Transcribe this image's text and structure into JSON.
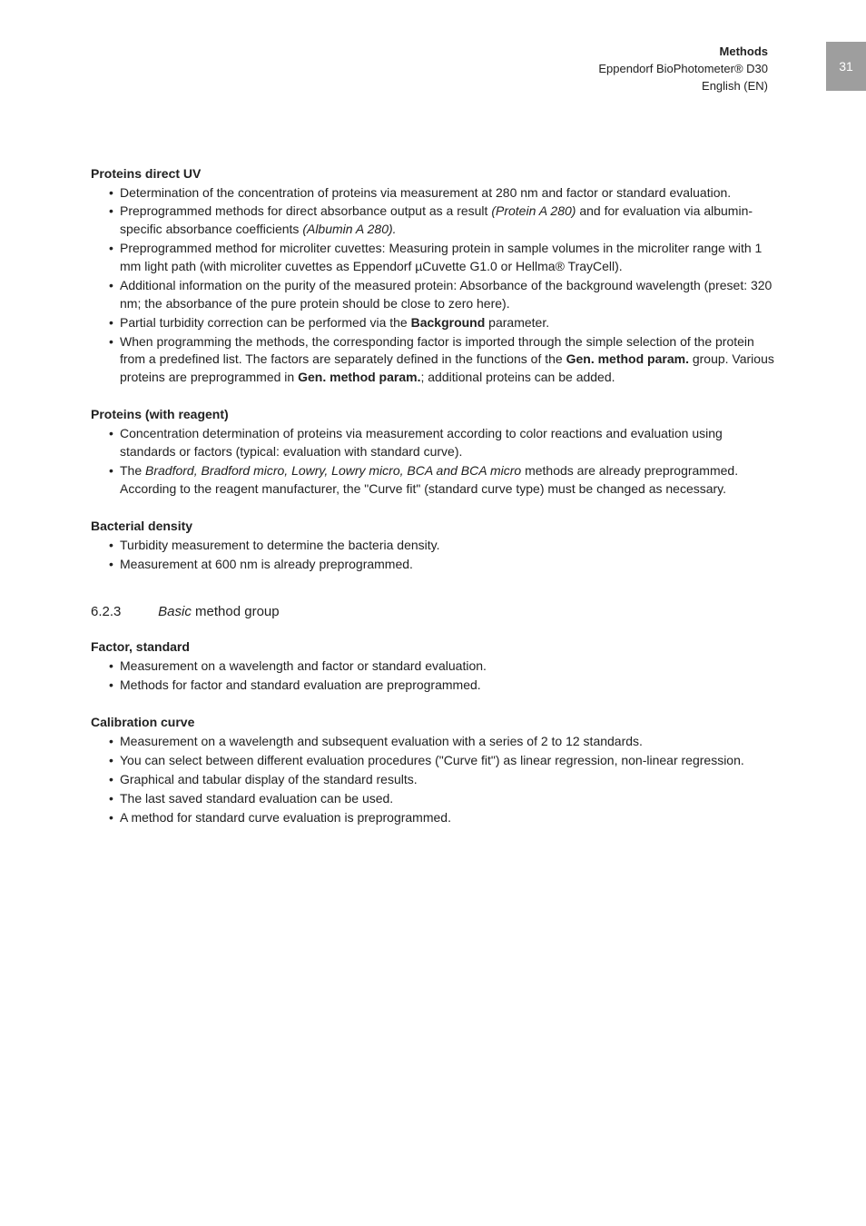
{
  "page_number": "31",
  "header": {
    "title": "Methods",
    "product": "Eppendorf BioPhotometer® D30",
    "language": "English (EN)"
  },
  "sections": [
    {
      "heading": "Proteins direct UV",
      "items": [
        {
          "parts": [
            {
              "t": "Determination of the concentration of proteins via measurement at 280 nm and factor or standard evaluation."
            }
          ]
        },
        {
          "parts": [
            {
              "t": "Preprogrammed methods for direct absorbance output as a result "
            },
            {
              "t": "(Protein A 280)",
              "style": "ital"
            },
            {
              "t": " and for evaluation via albumin-specific absorbance coefficients "
            },
            {
              "t": "(Albumin A 280).",
              "style": "ital"
            }
          ]
        },
        {
          "parts": [
            {
              "t": "Preprogrammed method for microliter cuvettes: Measuring protein in sample volumes in the microliter range with 1 mm light path (with microliter cuvettes as Eppendorf µCuvette G1.0 or Hellma® TrayCell)."
            }
          ]
        },
        {
          "parts": [
            {
              "t": "Additional information on the purity of the measured protein: Absorbance of the background wavelength (preset: 320 nm; the absorbance of the pure protein should be close to zero here)."
            }
          ]
        },
        {
          "parts": [
            {
              "t": "Partial turbidity correction can be performed via the "
            },
            {
              "t": "Background",
              "style": "bold"
            },
            {
              "t": " parameter."
            }
          ]
        },
        {
          "parts": [
            {
              "t": "When programming the methods, the corresponding factor is imported through the simple selection of the protein from a predefined list. The factors are separately defined in the functions of the "
            },
            {
              "t": "Gen. method param.",
              "style": "bold"
            },
            {
              "t": " group. Various proteins are preprogrammed in "
            },
            {
              "t": "Gen. method param.",
              "style": "bold"
            },
            {
              "t": "; additional proteins can be added."
            }
          ]
        }
      ]
    },
    {
      "heading": "Proteins (with reagent)",
      "items": [
        {
          "parts": [
            {
              "t": "Concentration determination of proteins via measurement according to color reactions and evaluation using standards or factors (typical: evaluation with standard curve)."
            }
          ]
        },
        {
          "parts": [
            {
              "t": "The "
            },
            {
              "t": "Bradford, Bradford micro, Lowry, Lowry micro, BCA and BCA micro",
              "style": "ital"
            },
            {
              "t": " methods are already preprogrammed. According to the reagent manufacturer, the \"Curve fit\" (standard curve type) must be changed as necessary."
            }
          ]
        }
      ]
    },
    {
      "heading": "Bacterial density",
      "items": [
        {
          "parts": [
            {
              "t": "Turbidity measurement to determine the bacteria density."
            }
          ]
        },
        {
          "parts": [
            {
              "t": "Measurement at 600 nm is already preprogrammed."
            }
          ]
        }
      ]
    }
  ],
  "subsection": {
    "number": "6.2.3",
    "title_ital": "Basic",
    "title_rest": " method group"
  },
  "sub_sections": [
    {
      "heading": "Factor, standard",
      "items": [
        {
          "parts": [
            {
              "t": "Measurement on a wavelength and factor or standard evaluation."
            }
          ]
        },
        {
          "parts": [
            {
              "t": "Methods for factor and standard evaluation are preprogrammed."
            }
          ]
        }
      ]
    },
    {
      "heading": "Calibration curve",
      "items": [
        {
          "parts": [
            {
              "t": "Measurement on a wavelength and subsequent evaluation with a series of 2 to 12 standards."
            }
          ]
        },
        {
          "parts": [
            {
              "t": "You can select between different evaluation procedures (\"Curve fit\") as linear regression, non-linear regression."
            }
          ]
        },
        {
          "parts": [
            {
              "t": "Graphical and tabular display of the standard results."
            }
          ]
        },
        {
          "parts": [
            {
              "t": "The last saved standard evaluation can be used."
            }
          ]
        },
        {
          "parts": [
            {
              "t": "A method for standard curve evaluation is preprogrammed."
            }
          ]
        }
      ]
    }
  ]
}
